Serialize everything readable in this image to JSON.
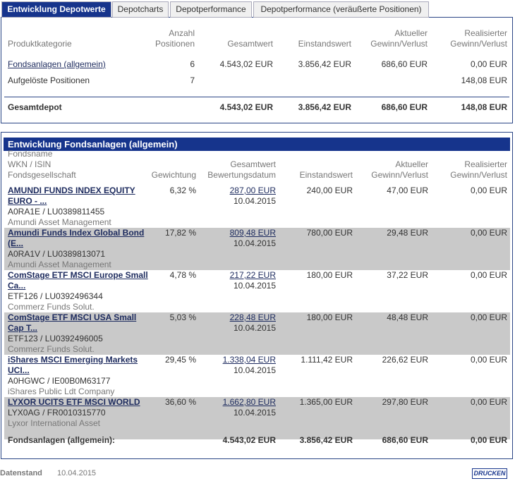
{
  "tabs": [
    "Entwicklung Depotwerte",
    "Depotcharts",
    "Depotperformance",
    "Depotperformance (veräußerte Positionen)"
  ],
  "summary": {
    "headers": [
      [
        "Produktkategorie"
      ],
      [
        "Anzahl",
        "Positionen"
      ],
      [
        "Gesamtwert"
      ],
      [
        "Einstandswert"
      ],
      [
        "Aktueller",
        "Gewinn/Verlust"
      ],
      [
        "Realisierter",
        "Gewinn/Verlust"
      ]
    ],
    "rows": [
      {
        "label": "Fondsanlagen (allgemein)",
        "count": "6",
        "total": "4.543,02 EUR",
        "cost": "3.856,42 EUR",
        "gain": "686,60 EUR",
        "realized": "0,00 EUR"
      },
      {
        "label": "Aufgelöste Positionen",
        "count": "7",
        "realized": "148,08 EUR"
      }
    ],
    "total": {
      "label": "Gesamtdepot",
      "total": "4.543,02 EUR",
      "cost": "3.856,42 EUR",
      "gain": "686,60 EUR",
      "realized": "148,08 EUR"
    }
  },
  "funds": {
    "title": "Entwicklung Fondsanlagen (allgemein)",
    "headers": [
      [
        "Fondsname",
        "WKN / ISIN",
        "Fondsgesellschaft"
      ],
      [
        "Gewichtung"
      ],
      [
        "Gesamtwert",
        "Bewertungsdatum"
      ],
      [
        "Einstandswert"
      ],
      [
        "Aktueller",
        "Gewinn/Verlust"
      ],
      [
        "Realisierter",
        "Gewinn/Verlust"
      ]
    ],
    "rows": [
      {
        "name": "AMUNDI FUNDS INDEX EQUITY EURO - ...",
        "ids": "A0RA1E / LU0389811455",
        "company": "Amundi Asset Management",
        "weight": "6,32 %",
        "value": "287,00 EUR",
        "date": "10.04.2015",
        "cost": "240,00 EUR",
        "gain": "47,00 EUR",
        "realized": "0,00 EUR"
      },
      {
        "name": "Amundi Funds Index Global Bond (E...",
        "ids": "A0RA1V / LU0389813071",
        "company": "Amundi Asset Management",
        "weight": "17,82 %",
        "value": "809,48 EUR",
        "date": "10.04.2015",
        "cost": "780,00 EUR",
        "gain": "29,48 EUR",
        "realized": "0,00 EUR"
      },
      {
        "name": "ComStage ETF MSCI Europe Small Ca...",
        "ids": "ETF126 / LU0392496344",
        "company": "Commerz Funds Solut.",
        "weight": "4,78 %",
        "value": "217,22 EUR",
        "date": "10.04.2015",
        "cost": "180,00 EUR",
        "gain": "37,22 EUR",
        "realized": "0,00 EUR"
      },
      {
        "name": "ComStage ETF MSCI USA Small Cap T...",
        "ids": "ETF123 / LU0392496005",
        "company": "Commerz Funds Solut.",
        "weight": "5,03 %",
        "value": "228,48 EUR",
        "date": "10.04.2015",
        "cost": "180,00 EUR",
        "gain": "48,48 EUR",
        "realized": "0,00 EUR"
      },
      {
        "name": "iShares MSCI Emerging Markets UCI...",
        "ids": "A0HGWC / IE00B0M63177",
        "company": "iShares Public Ldt Company",
        "weight": "29,45 %",
        "value": "1.338,04 EUR",
        "date": "10.04.2015",
        "cost": "1.111,42 EUR",
        "gain": "226,62 EUR",
        "realized": "0,00 EUR"
      },
      {
        "name": "LYXOR UCITS ETF MSCI WORLD",
        "ids": "LYX0AG / FR0010315770",
        "company": "Lyxor International Asset",
        "weight": "36,60 %",
        "value": "1.662,80 EUR",
        "date": "10.04.2015",
        "cost": "1.365,00 EUR",
        "gain": "297,80 EUR",
        "realized": "0,00 EUR"
      }
    ],
    "total": {
      "label": "Fondsanlagen (allgemein):",
      "value": "4.543,02 EUR",
      "cost": "3.856,42 EUR",
      "gain": "686,60 EUR",
      "realized": "0,00 EUR"
    }
  },
  "footer": {
    "label": "Datenstand",
    "date": "10.04.2015",
    "button": "DRUCKEN"
  }
}
